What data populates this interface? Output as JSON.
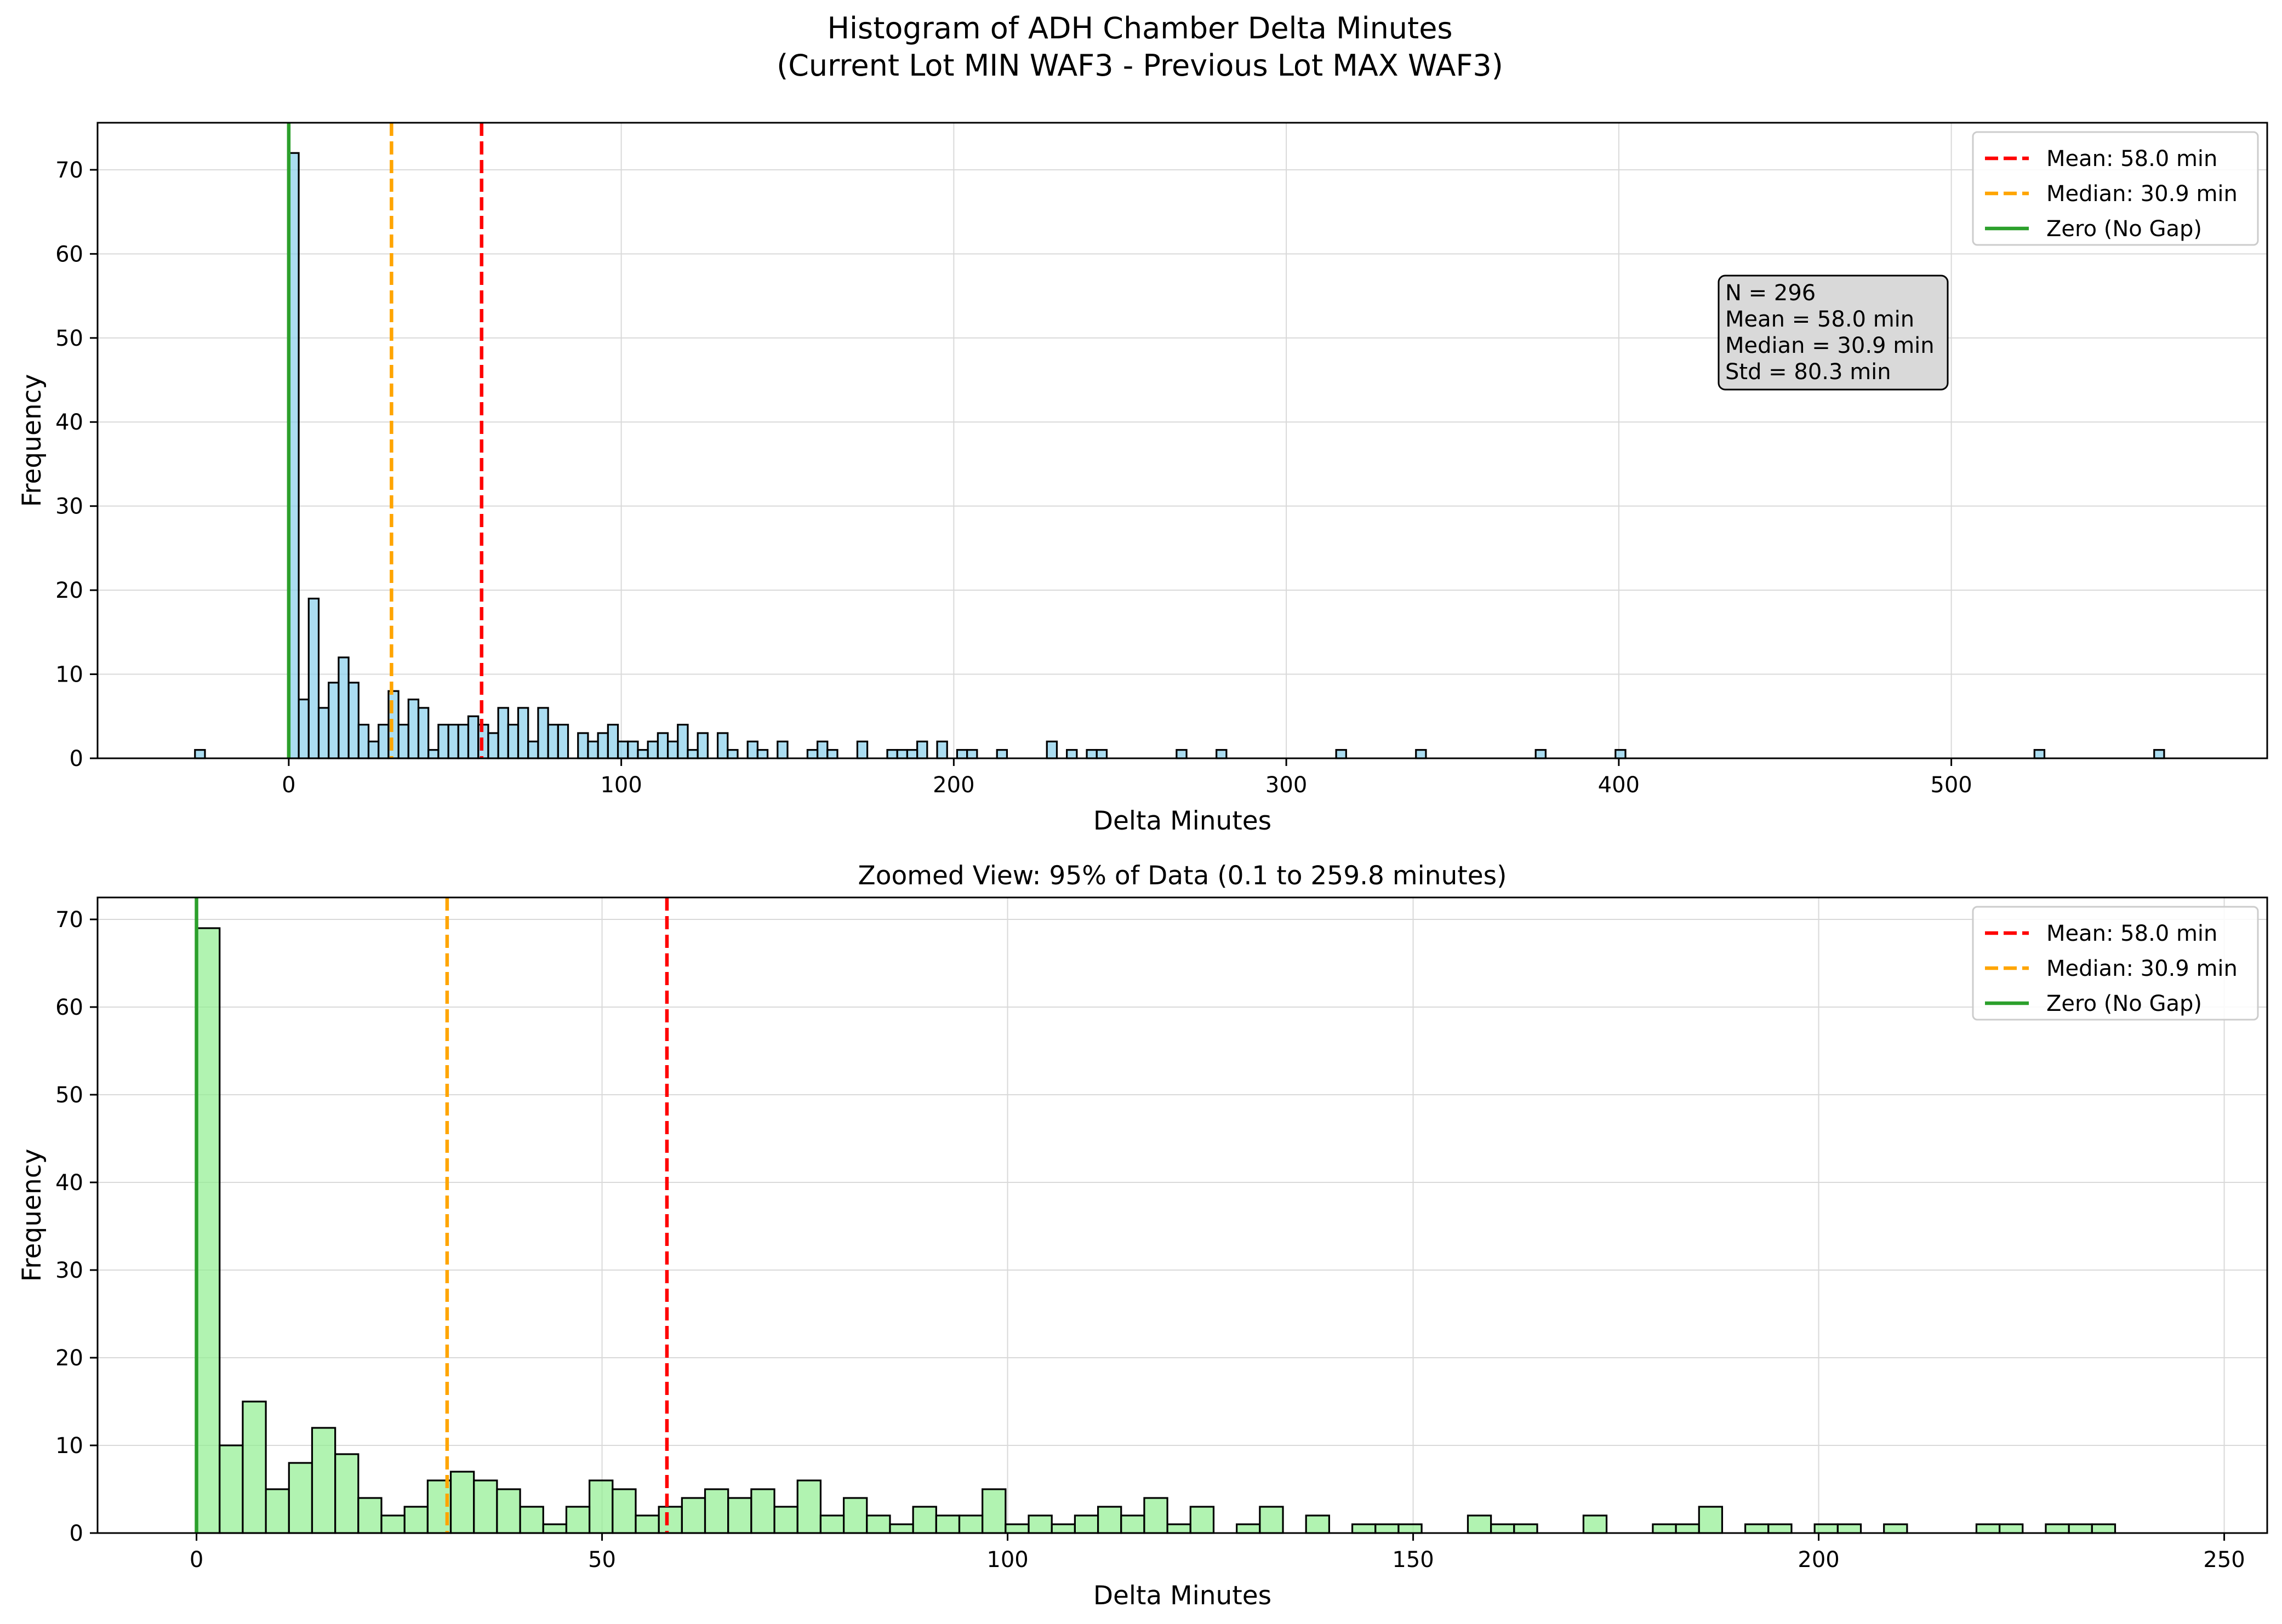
{
  "title_line1": "Histogram of ADH Chamber Delta Minutes",
  "title_line2": "(Current Lot MIN WAF3 - Previous Lot MAX WAF3)",
  "colors": {
    "mean": "#ff0000",
    "median": "#ffa500",
    "zero": "#2ca02c",
    "top_bars": "#87ceeb",
    "bottom_bars": "#90ee90",
    "edge": "#000000",
    "grid": "#d9d9d9",
    "stats_box": "#d9d9d9"
  },
  "chart_data": [
    {
      "type": "bar",
      "subtitle": "",
      "xlabel": "Delta Minutes",
      "ylabel": "Frequency",
      "xlim": [
        -57.5,
        595
      ],
      "ylim": [
        0,
        75.6
      ],
      "xticks": [
        0,
        100,
        200,
        300,
        400,
        500
      ],
      "yticks": [
        0,
        10,
        20,
        30,
        40,
        50,
        60,
        70
      ],
      "grid": true,
      "legend_position": "top-right",
      "bin_width": 3.0,
      "legend": [
        "Mean: 58.0 min",
        "Median: 30.9 min",
        "Zero (No Gap)"
      ],
      "vlines": {
        "mean": 58.0,
        "median": 30.9,
        "zero": 0
      },
      "stats_box": [
        "N = 296",
        "Mean = 58.0 min",
        "Median = 30.9 min",
        "Std = 80.3 min"
      ],
      "bins": [
        {
          "x": -28.2,
          "y": 1
        },
        {
          "x": 0,
          "y": 72
        },
        {
          "x": 3,
          "y": 7
        },
        {
          "x": 6,
          "y": 19
        },
        {
          "x": 9,
          "y": 6
        },
        {
          "x": 12,
          "y": 9
        },
        {
          "x": 15,
          "y": 12
        },
        {
          "x": 18,
          "y": 9
        },
        {
          "x": 21,
          "y": 4
        },
        {
          "x": 24,
          "y": 2
        },
        {
          "x": 27,
          "y": 4
        },
        {
          "x": 30,
          "y": 8
        },
        {
          "x": 33,
          "y": 4
        },
        {
          "x": 36,
          "y": 7
        },
        {
          "x": 39,
          "y": 6
        },
        {
          "x": 42,
          "y": 1
        },
        {
          "x": 45,
          "y": 4
        },
        {
          "x": 48,
          "y": 4
        },
        {
          "x": 51,
          "y": 4
        },
        {
          "x": 54,
          "y": 5
        },
        {
          "x": 57,
          "y": 4
        },
        {
          "x": 60,
          "y": 3
        },
        {
          "x": 63,
          "y": 6
        },
        {
          "x": 66,
          "y": 4
        },
        {
          "x": 69,
          "y": 6
        },
        {
          "x": 72,
          "y": 2
        },
        {
          "x": 75,
          "y": 6
        },
        {
          "x": 78,
          "y": 4
        },
        {
          "x": 81,
          "y": 4
        },
        {
          "x": 87,
          "y": 3
        },
        {
          "x": 90,
          "y": 2
        },
        {
          "x": 93,
          "y": 3
        },
        {
          "x": 96,
          "y": 4
        },
        {
          "x": 99,
          "y": 2
        },
        {
          "x": 102,
          "y": 2
        },
        {
          "x": 105,
          "y": 1
        },
        {
          "x": 108,
          "y": 2
        },
        {
          "x": 111,
          "y": 3
        },
        {
          "x": 114,
          "y": 2
        },
        {
          "x": 117,
          "y": 4
        },
        {
          "x": 120,
          "y": 1
        },
        {
          "x": 123,
          "y": 3
        },
        {
          "x": 129,
          "y": 3
        },
        {
          "x": 132,
          "y": 1
        },
        {
          "x": 138,
          "y": 2
        },
        {
          "x": 141,
          "y": 1
        },
        {
          "x": 147,
          "y": 2
        },
        {
          "x": 156,
          "y": 1
        },
        {
          "x": 159,
          "y": 2
        },
        {
          "x": 162,
          "y": 1
        },
        {
          "x": 171,
          "y": 2
        },
        {
          "x": 180,
          "y": 1
        },
        {
          "x": 183,
          "y": 1
        },
        {
          "x": 186,
          "y": 1
        },
        {
          "x": 189,
          "y": 2
        },
        {
          "x": 195,
          "y": 2
        },
        {
          "x": 201,
          "y": 1
        },
        {
          "x": 204,
          "y": 1
        },
        {
          "x": 213,
          "y": 1
        },
        {
          "x": 228,
          "y": 2
        },
        {
          "x": 234,
          "y": 1
        },
        {
          "x": 240,
          "y": 1
        },
        {
          "x": 243,
          "y": 1
        },
        {
          "x": 267,
          "y": 1
        },
        {
          "x": 279,
          "y": 1
        },
        {
          "x": 315,
          "y": 1
        },
        {
          "x": 339,
          "y": 1
        },
        {
          "x": 375,
          "y": 1
        },
        {
          "x": 399,
          "y": 1
        },
        {
          "x": 525,
          "y": 1
        },
        {
          "x": 561,
          "y": 1
        }
      ]
    },
    {
      "type": "bar",
      "subtitle": "Zoomed View: 95% of Data (0.1 to 259.8 minutes)",
      "xlabel": "Delta Minutes",
      "ylabel": "Frequency",
      "xlim": [
        -12.2,
        255.3
      ],
      "ylim": [
        0,
        72.5
      ],
      "xticks": [
        0,
        50,
        100,
        150,
        200,
        250
      ],
      "yticks": [
        0,
        10,
        20,
        30,
        40,
        50,
        60,
        70
      ],
      "grid": true,
      "legend_position": "top-right",
      "bin_width": 2.85,
      "legend": [
        "Mean: 58.0 min",
        "Median: 30.9 min",
        "Zero (No Gap)"
      ],
      "vlines": {
        "mean": 58.0,
        "median": 30.9,
        "zero": 0
      },
      "values": [
        69,
        10,
        15,
        5,
        8,
        12,
        9,
        4,
        2,
        3,
        6,
        7,
        6,
        5,
        3,
        1,
        3,
        6,
        5,
        2,
        3,
        4,
        5,
        4,
        5,
        3,
        6,
        2,
        4,
        2,
        1,
        3,
        2,
        2,
        5,
        1,
        2,
        1,
        2,
        3,
        2,
        4,
        1,
        3,
        0,
        1,
        3,
        0,
        2,
        0,
        1,
        1,
        1,
        0,
        0,
        2,
        1,
        1,
        0,
        0,
        2,
        0,
        0,
        1,
        1,
        3,
        0,
        1,
        1,
        0,
        1,
        1,
        0,
        1,
        0,
        0,
        0,
        1,
        1,
        0,
        1,
        1,
        1
      ]
    }
  ]
}
